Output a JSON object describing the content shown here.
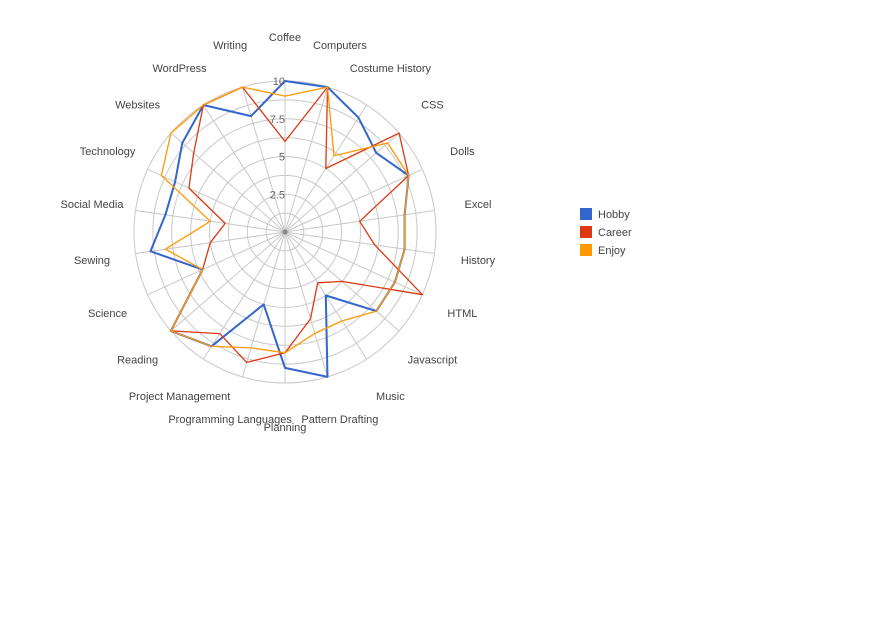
{
  "chart_data": {
    "type": "radar",
    "title": "",
    "categories": [
      "Coffee",
      "Computers",
      "Costume History",
      "CSS",
      "Dolls",
      "Excel",
      "History",
      "HTML",
      "Javascript",
      "Music",
      "Pattern Drafting",
      "Planning",
      "Programming Languages",
      "Project Management",
      "Reading",
      "Science",
      "Sewing",
      "Social Media",
      "Technology",
      "Websites",
      "WordPress",
      "Writing"
    ],
    "rmin": 0,
    "rmax": 10,
    "ticks": [
      2.5,
      5,
      7.5,
      10
    ],
    "tick_labels": [
      "2.5",
      "5",
      "7.5",
      "10"
    ],
    "grid": true,
    "legend_position": "right",
    "series": [
      {
        "name": "Hobby",
        "color": "#3366cc",
        "values": [
          10,
          10,
          9,
          8,
          9,
          8,
          8,
          8,
          8,
          5,
          10,
          9,
          5,
          9,
          10,
          6,
          9,
          8,
          8,
          9,
          10,
          8
        ]
      },
      {
        "name": "Career",
        "color": "#dc3912",
        "values": [
          6,
          10,
          5,
          10,
          9,
          5,
          6,
          10,
          5,
          4,
          6,
          8,
          9,
          8,
          10,
          6,
          5,
          4,
          7,
          8,
          10,
          10
        ]
      },
      {
        "name": "Enjoy",
        "color": "#ff9900",
        "values": [
          9,
          10,
          6,
          9,
          9,
          8,
          8,
          8,
          8,
          7,
          7,
          8,
          8,
          9,
          10,
          6,
          8,
          5,
          9,
          10,
          10,
          10
        ]
      }
    ]
  }
}
